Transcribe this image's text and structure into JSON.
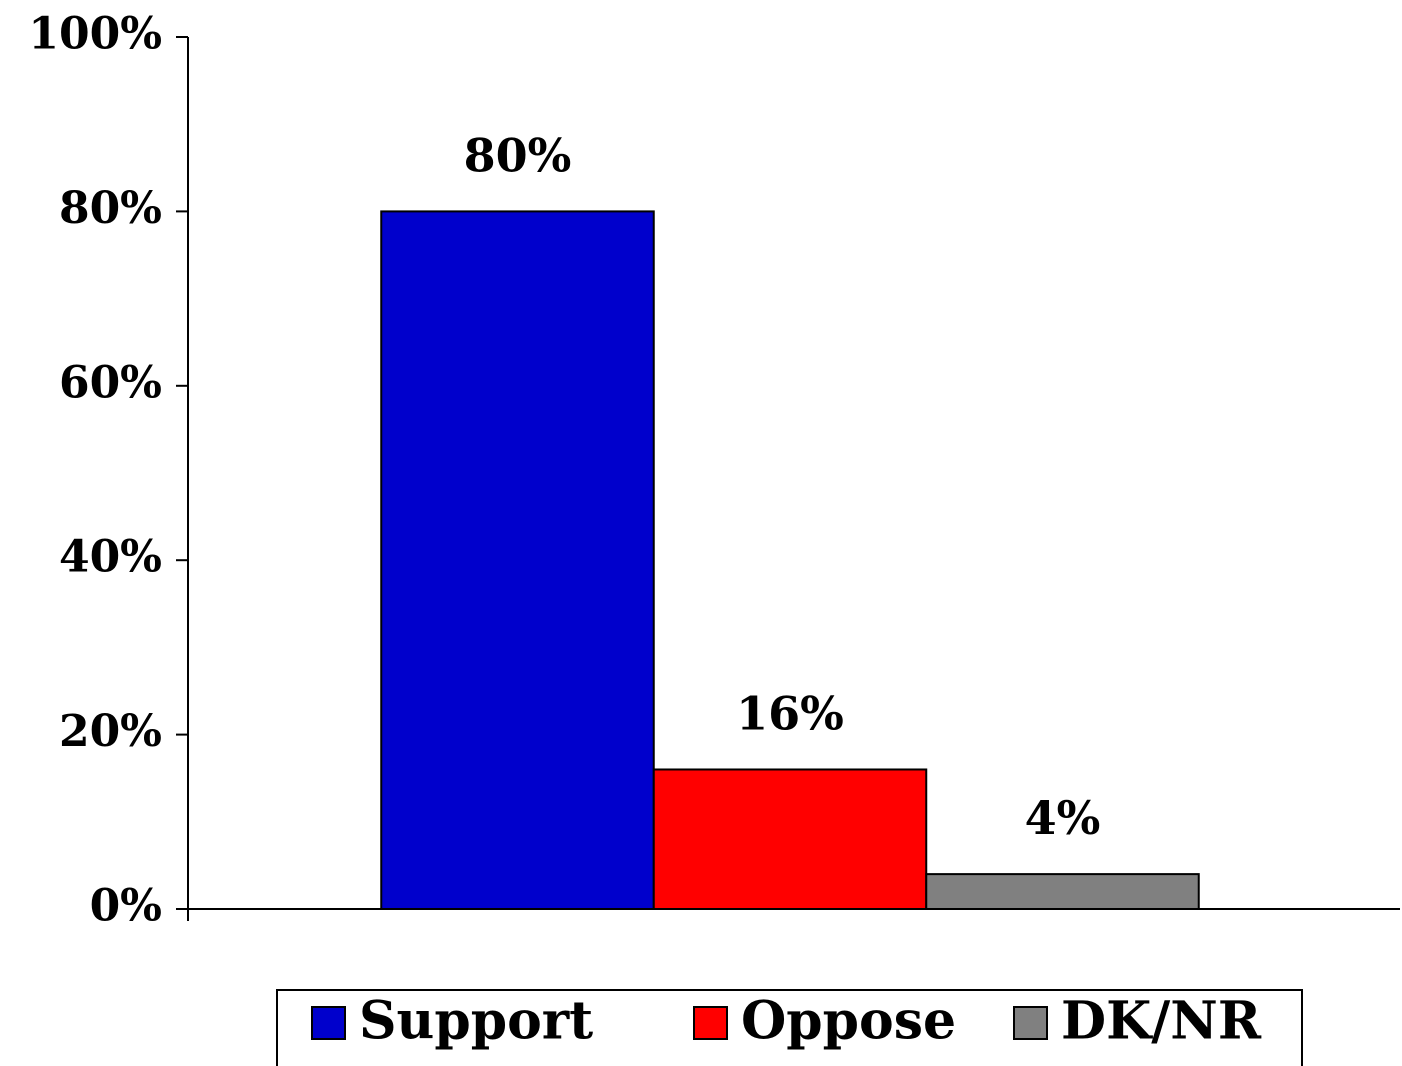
{
  "chart_data": {
    "type": "bar",
    "categories": [
      null
    ],
    "series": [
      {
        "name": "Support",
        "color": "#0000cc",
        "values": [
          80
        ],
        "value_labels": [
          "80%"
        ]
      },
      {
        "name": "Oppose",
        "color": "#ff0000",
        "values": [
          16
        ],
        "value_labels": [
          "16%"
        ]
      },
      {
        "name": "DK/NR",
        "color": "#808080",
        "values": [
          4
        ],
        "value_labels": [
          "4%"
        ]
      }
    ],
    "ylim": [
      0,
      100
    ],
    "yticks": [
      {
        "value": 0,
        "label": "0%"
      },
      {
        "value": 20,
        "label": "20%"
      },
      {
        "value": 40,
        "label": "40%"
      },
      {
        "value": 60,
        "label": "60%"
      },
      {
        "value": 80,
        "label": "80%"
      },
      {
        "value": 100,
        "label": "100%"
      }
    ],
    "legend": "bottom"
  }
}
